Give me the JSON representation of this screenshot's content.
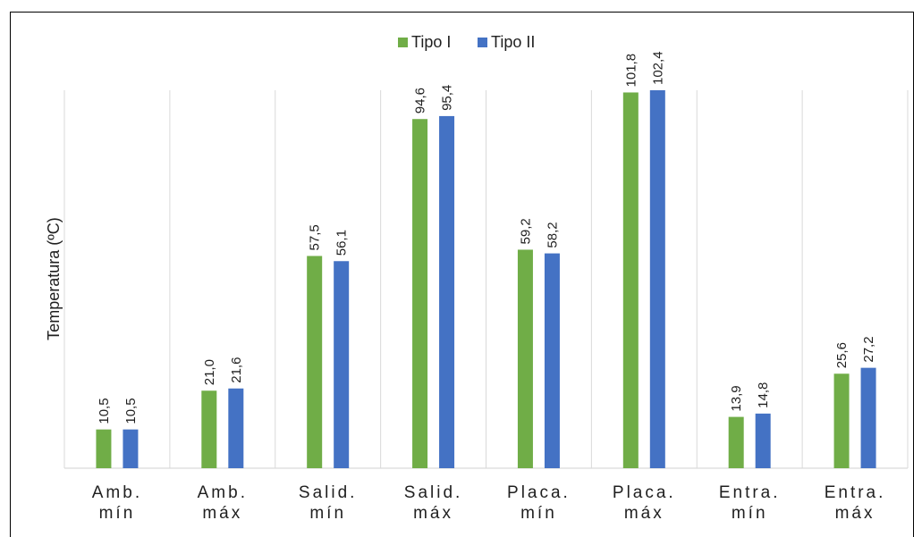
{
  "chart_data": {
    "type": "bar",
    "title": "",
    "xlabel": "",
    "ylabel": "Temperatura (ºC)",
    "categories": [
      [
        "Amb.",
        "mín"
      ],
      [
        "Amb.",
        "máx"
      ],
      [
        "Salid.",
        "mín"
      ],
      [
        "Salid.",
        "máx"
      ],
      [
        "Placa.",
        "mín"
      ],
      [
        "Placa.",
        "máx"
      ],
      [
        "Entra.",
        "mín"
      ],
      [
        "Entra.",
        "máx"
      ]
    ],
    "series": [
      {
        "name": "Tipo I",
        "color": "#70ad47",
        "values": [
          10.5,
          21.0,
          57.5,
          94.6,
          59.2,
          101.8,
          13.9,
          25.6
        ],
        "labels": [
          "10,5",
          "21,0",
          "57,5",
          "94,6",
          "59,2",
          "101,8",
          "13,9",
          "25,6"
        ]
      },
      {
        "name": "Tipo II",
        "color": "#4472c4",
        "values": [
          10.5,
          21.6,
          56.1,
          95.4,
          58.2,
          102.4,
          14.8,
          27.2
        ],
        "labels": [
          "10,5",
          "21,6",
          "56,1",
          "95,4",
          "58,2",
          "102,4",
          "14,8",
          "27,2"
        ]
      }
    ],
    "ylim": [
      0,
      102.4
    ],
    "grid": "vertical",
    "legend": "top-center"
  }
}
